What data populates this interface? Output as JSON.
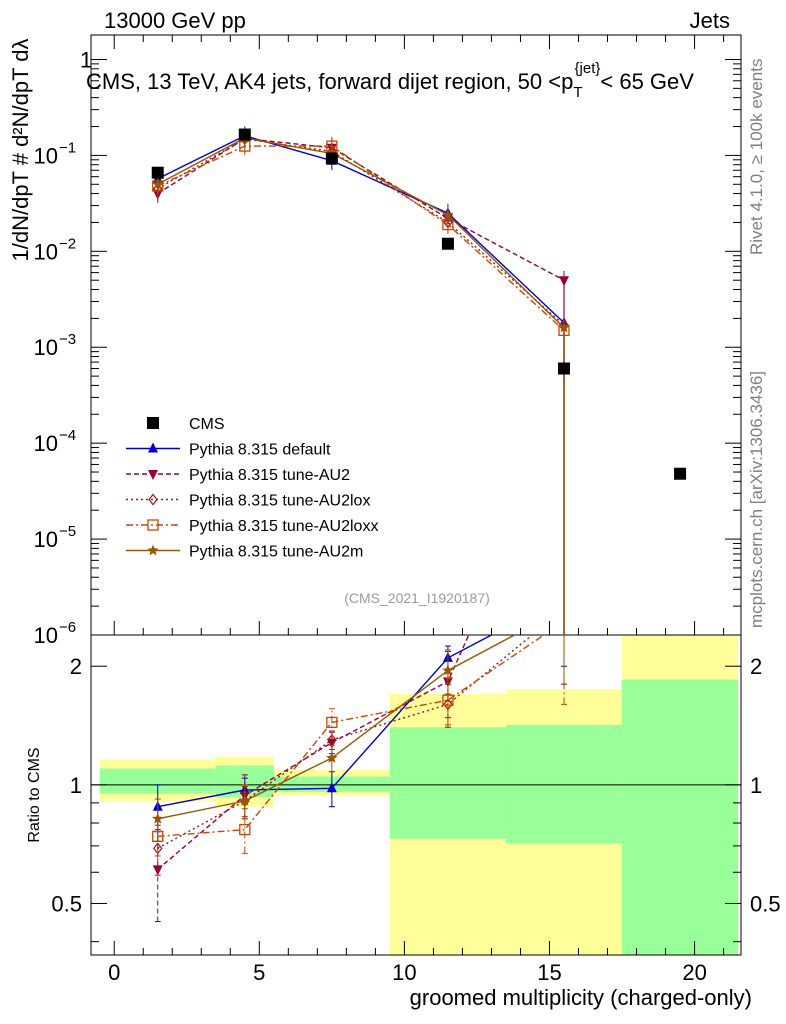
{
  "header": {
    "left": "13000 GeV pp",
    "right": "Jets"
  },
  "title": "CMS, 13 TeV, AK4 jets, forward dijet region, 50 <p",
  "title_sub": "T",
  "title_sup": "{jet}",
  "title_tail": "< 65 GeV",
  "side_labels": {
    "rivet": "Rivet 4.1.0, ≥ 100k events",
    "mcplots": "mcplots.cern.ch [arXiv:1306.3436]"
  },
  "analysis_tag": "(CMS_2021_I1920187)",
  "xlabel": "groomed multiplicity (charged-only)",
  "ratio_ylabel": "Ratio to CMS",
  "colors": {
    "cms": "#000000",
    "default": "#0000cc",
    "au2": "#990033",
    "au2lox": "#99181e",
    "au2loxx": "#cc4400",
    "au2m": "#995500",
    "band_yellow": "#ffff99",
    "band_green": "#99ff99"
  },
  "chart_data": {
    "type": "line",
    "x_range": [
      -0.8,
      21.6
    ],
    "x_ticks": [
      0,
      5,
      10,
      15,
      20
    ],
    "main_yscale": "log",
    "main_ylim": [
      1e-06,
      1.8
    ],
    "main_ylabel": "1/dN/dpT # d²N/dpT dλ",
    "main_yticks": [
      {
        "value": 1,
        "label": "1"
      },
      {
        "value": 0.1,
        "label": "10",
        "exp": "−1"
      },
      {
        "value": 0.01,
        "label": "10",
        "exp": "−2"
      },
      {
        "value": 0.001,
        "label": "10",
        "exp": "−3"
      },
      {
        "value": 0.0001,
        "label": "10",
        "exp": "−4"
      },
      {
        "value": 1e-05,
        "label": "10",
        "exp": "−5"
      },
      {
        "value": 1e-06,
        "label": "10",
        "exp": "−6"
      }
    ],
    "ratio_ylim": [
      0.37,
      2.4
    ],
    "ratio_yticks": [
      {
        "value": 0.5,
        "label": "0.5"
      },
      {
        "value": 1,
        "label": "1"
      },
      {
        "value": 2,
        "label": "2"
      }
    ],
    "cms": {
      "name": "CMS",
      "x": [
        1.5,
        4.5,
        7.5,
        11.5,
        15.5,
        19.5
      ],
      "y": [
        0.066,
        0.165,
        0.093,
        0.012,
        0.0006,
        4.8e-05
      ],
      "bins": [
        [
          -0.5,
          3.5
        ],
        [
          3.5,
          5.5
        ],
        [
          5.5,
          9.5
        ],
        [
          9.5,
          13.5
        ],
        [
          13.5,
          17.5
        ],
        [
          17.5,
          21.5
        ]
      ],
      "ratio_band_yellow": [
        [
          0.91,
          1.16
        ],
        [
          0.88,
          1.18
        ],
        [
          0.94,
          1.09
        ],
        [
          0.35,
          1.7
        ],
        [
          0.35,
          1.75
        ],
        [
          0.35,
          2.45
        ]
      ],
      "ratio_band_green": [
        [
          0.95,
          1.1
        ],
        [
          0.93,
          1.12
        ],
        [
          0.96,
          1.05
        ],
        [
          0.73,
          1.4
        ],
        [
          0.71,
          1.42
        ],
        [
          0.35,
          1.85
        ]
      ]
    },
    "series": [
      {
        "key": "default",
        "name": "Pythia 8.315 default",
        "marker": "triangle-up",
        "dash": "",
        "x": [
          1.5,
          4.5,
          7.5,
          11.5,
          15.5
        ],
        "y": [
          0.057,
          0.16,
          0.088,
          0.025,
          0.0018
        ],
        "ratio": [
          0.88,
          0.97,
          0.98,
          2.1,
          3.0
        ],
        "ratio_err": [
          0.12,
          0.07,
          0.1,
          0.15,
          1.0
        ]
      },
      {
        "key": "au2",
        "name": "Pythia 8.315 tune-AU2",
        "marker": "triangle-down",
        "dash": "5,3",
        "x": [
          1.5,
          4.5,
          7.5,
          11.5,
          15.5
        ],
        "y": [
          0.04,
          0.15,
          0.12,
          0.022,
          0.005
        ],
        "ratio": [
          0.61,
          0.94,
          1.28,
          1.83,
          8.3
        ],
        "ratio_err": [
          0.16,
          0.12,
          0.08,
          0.35,
          3.0
        ]
      },
      {
        "key": "au2lox",
        "name": "Pythia 8.315 tune-AU2lox",
        "marker": "diamond-open",
        "dash": "2,3",
        "x": [
          1.5,
          4.5,
          7.5,
          11.5,
          15.5
        ],
        "y": [
          0.045,
          0.148,
          0.11,
          0.02,
          0.0017
        ],
        "ratio": [
          0.69,
          0.91,
          1.3,
          1.6,
          2.8
        ],
        "ratio_err": [
          0.1,
          0.08,
          0.07,
          0.2,
          1.0
        ]
      },
      {
        "key": "au2loxx",
        "name": "Pythia 8.315 tune-AU2loxx",
        "marker": "square-open",
        "dash": "7,3,2,3",
        "x": [
          1.5,
          4.5,
          7.5,
          11.5,
          15.5
        ],
        "y": [
          0.048,
          0.125,
          0.125,
          0.019,
          0.0015
        ],
        "ratio": [
          0.74,
          0.77,
          1.44,
          1.64,
          2.6
        ],
        "ratio_err": [
          0.08,
          0.1,
          0.12,
          0.22,
          1.0
        ]
      },
      {
        "key": "au2m",
        "name": "Pythia 8.315 tune-AU2m",
        "marker": "star",
        "dash": "",
        "x": [
          1.5,
          4.5,
          7.5,
          11.5,
          15.5
        ],
        "y": [
          0.05,
          0.152,
          0.105,
          0.024,
          0.0016
        ],
        "ratio": [
          0.82,
          0.91,
          1.17,
          1.95,
          2.8
        ],
        "ratio_err": [
          0.1,
          0.09,
          0.09,
          0.25,
          1.0
        ]
      }
    ]
  }
}
